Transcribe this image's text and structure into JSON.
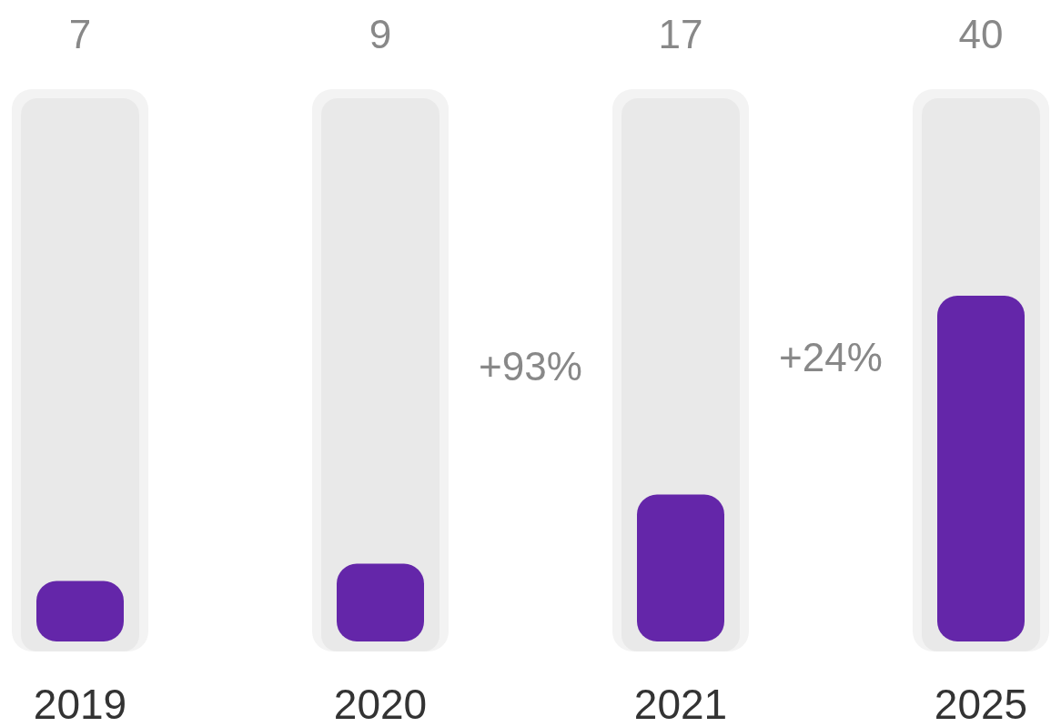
{
  "chart_data": {
    "type": "bar",
    "categories": [
      "2019",
      "2020",
      "2021",
      "2025"
    ],
    "values": [
      7,
      9,
      17,
      40
    ],
    "color": "#6426a9",
    "data_labels": true,
    "annotations": [
      "+93%",
      "+24%"
    ]
  }
}
